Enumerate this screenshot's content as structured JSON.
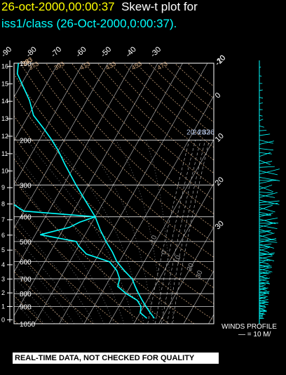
{
  "header": {
    "timestamp": "26-oct-2000,00:00:37",
    "title_suffix": "Skew-t plot for",
    "subtitle": "iss1/class (26-Oct-2000,0:00:37)."
  },
  "footer": {
    "winds_profile_label": "WINDS PROFILE",
    "winds_scale_label": "— = 10 M/",
    "disclaimer": "REAL-TIME DATA, NOT CHECKED FOR QUALITY"
  },
  "colors": {
    "temperature": "#00ffff",
    "dewpoint": "#00ffff",
    "isotherms": "#c8c8c8",
    "dry_adiabats": "#c8a078",
    "moist_adiabats": "#8c8c8c",
    "mixing_ratio": "#c8c8c8",
    "isobars": "#ffffff",
    "wind_barbs": "#00ffff",
    "height_axis": "#ffffff",
    "title_time": "#ffff00"
  },
  "chart_data": {
    "type": "skew-t",
    "pressure_levels_hpa": [
      "100",
      "200",
      "300",
      "400",
      "500",
      "600",
      "700",
      "800",
      "900",
      "1050"
    ],
    "height_km_ticks": [
      "0",
      "1",
      "2",
      "3",
      "4",
      "5",
      "6",
      "7",
      "8",
      "9",
      "10",
      "11",
      "12",
      "13",
      "14",
      "15",
      "16"
    ],
    "top_temperature_labels": [
      "-90",
      "-80",
      "-70",
      "-60",
      "-50",
      "-40",
      "-30"
    ],
    "right_temperature_labels": [
      "-20",
      "-10",
      "0",
      "10",
      "20",
      "30"
    ],
    "mixing_ratio_labels": [
      "20",
      "24",
      "28",
      "32",
      "36"
    ],
    "moist_adiabat_labels": [
      "-10",
      "0",
      "10",
      "20",
      "30"
    ],
    "dry_adiabat_labels": [
      "473",
      "453",
      "433",
      "413",
      "393",
      "373",
      "353",
      "333",
      "313",
      "293",
      "273",
      "253",
      "233"
    ],
    "temperature_profile": {
      "p": [
        1000,
        950,
        900,
        850,
        800,
        750,
        700,
        650,
        600,
        550,
        500,
        450,
        400,
        350,
        300,
        250,
        220,
        200,
        180,
        160,
        140,
        120,
        110,
        100
      ],
      "t": [
        27,
        24,
        21,
        18,
        15,
        12,
        9,
        4,
        -1,
        -5,
        -10,
        -15,
        -20,
        -27,
        -35,
        -44,
        -50,
        -55,
        -61,
        -68,
        -73,
        -80,
        -84,
        -86
      ]
    },
    "dewpoint_profile": {
      "p": [
        1000,
        950,
        900,
        850,
        800,
        750,
        700,
        650,
        600,
        560,
        520,
        500,
        470,
        440,
        420,
        400,
        380,
        360,
        340,
        320,
        300,
        270,
        250,
        230,
        200,
        180,
        160,
        140,
        120,
        110
      ],
      "td": [
        24,
        20,
        19,
        16,
        10,
        5,
        4,
        1,
        -4,
        -15,
        -20,
        -22,
        -38,
        -28,
        -25,
        -20,
        -50,
        -55,
        -60,
        -68,
        -72,
        -78,
        -80,
        -82,
        -84,
        -86,
        -88,
        -90,
        -92,
        -93
      ]
    },
    "wind_profile_knots": {
      "p": [
        1000,
        900,
        800,
        700,
        650,
        600,
        550,
        500,
        450,
        400,
        350,
        300,
        250,
        200,
        180,
        160,
        140,
        120,
        100
      ],
      "speed": [
        8,
        14,
        16,
        17,
        20,
        23,
        25,
        28,
        30,
        30,
        32,
        34,
        31,
        22,
        12,
        8,
        6,
        5,
        3
      ]
    },
    "x_range_degC": [
      -40,
      40
    ],
    "p_range_hpa": [
      1050,
      100
    ],
    "grid": true
  }
}
